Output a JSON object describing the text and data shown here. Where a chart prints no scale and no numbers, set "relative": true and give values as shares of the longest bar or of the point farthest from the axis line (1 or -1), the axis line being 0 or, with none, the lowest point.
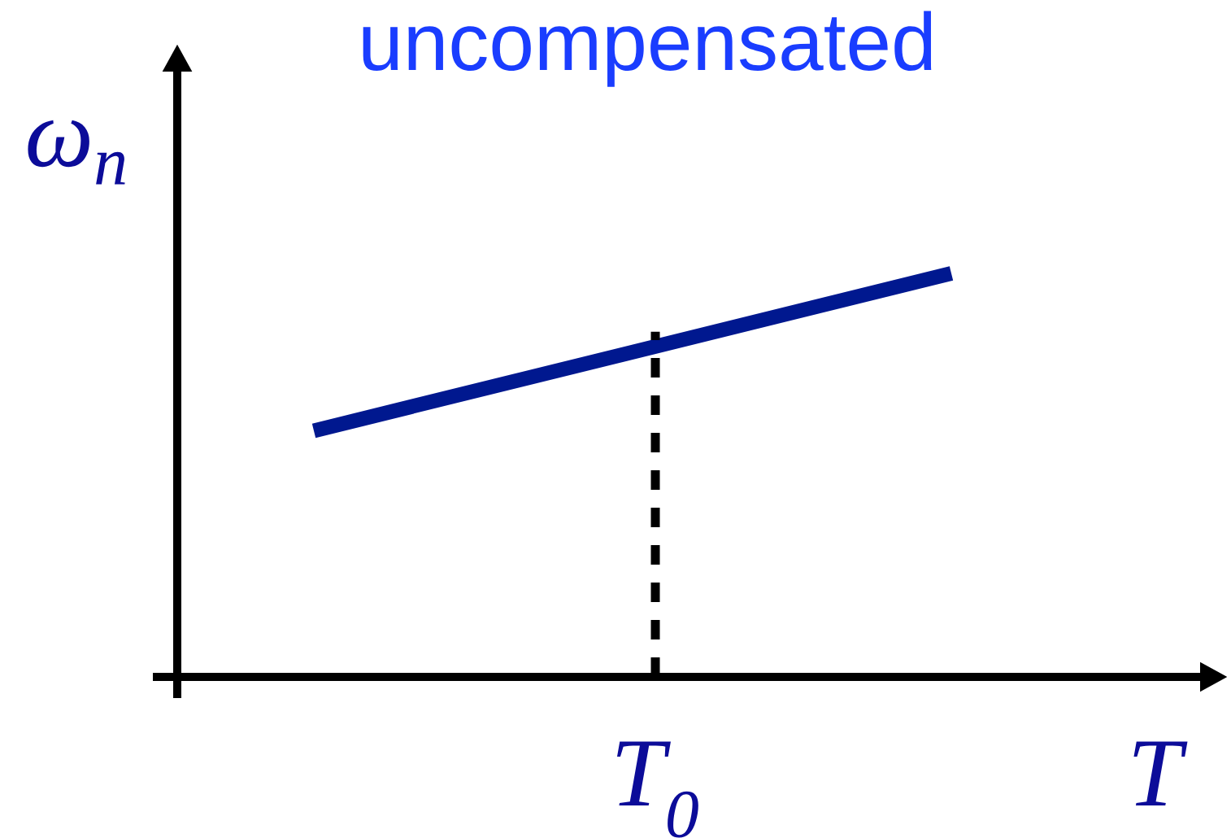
{
  "chart_data": {
    "type": "line",
    "title": "uncompensated",
    "xlabel": "T",
    "ylabel": "ω$_{n}$",
    "relative": true,
    "categories": [
      null,
      null
    ],
    "series": [
      {
        "color": "#00188f",
        "values": [
          0.61,
          1
        ]
      }
    ],
    "annotations": [
      "T$_{0}$"
    ]
  }
}
